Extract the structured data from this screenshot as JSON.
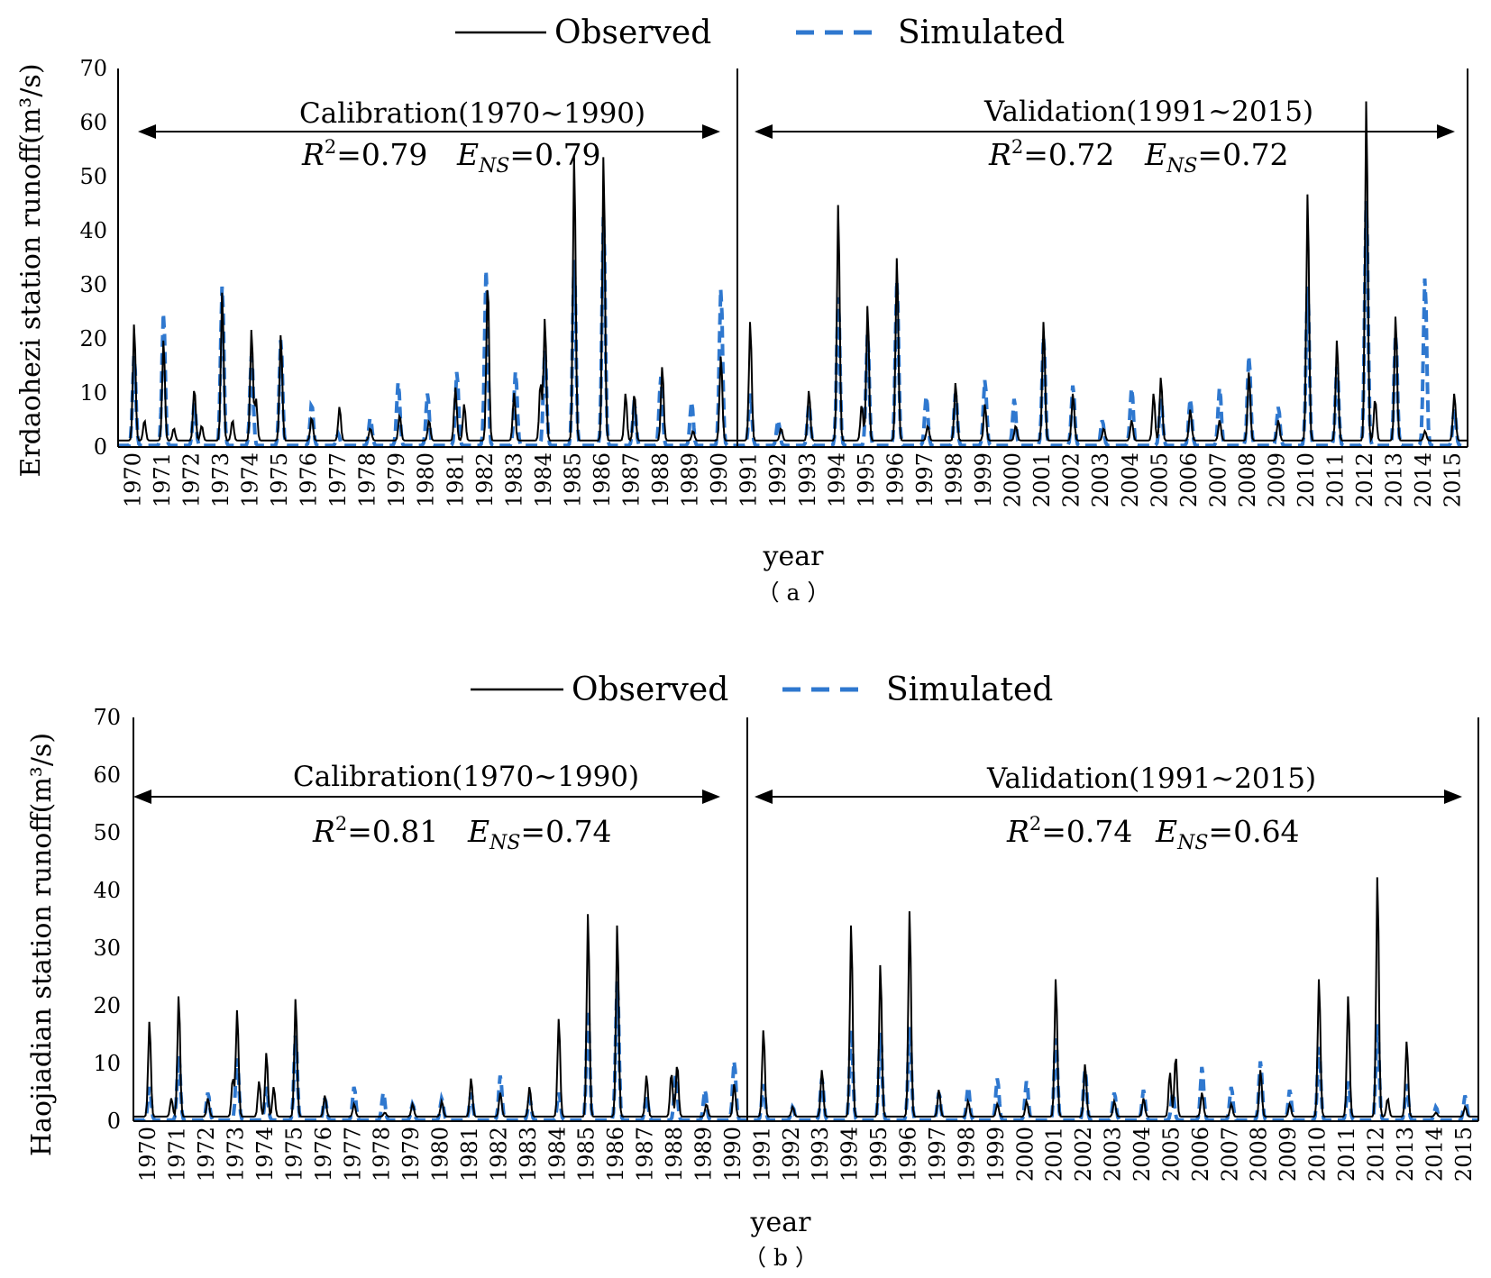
{
  "legend": {
    "observed_label": "Observed",
    "simulated_label": "Simulated"
  },
  "colors": {
    "observed": "#000000",
    "simulated": "#2F78CF",
    "axis": "#000000"
  },
  "chart_data": [
    {
      "type": "line",
      "panel_label": "（ a ）",
      "ylabel": "Erdaohezi station runoff(m³/s)",
      "xlabel": "year",
      "ylim": [
        0,
        70
      ],
      "yticks": [
        0,
        10,
        20,
        30,
        40,
        50,
        60,
        70
      ],
      "x_start_year": 1970,
      "x_end_year": 2015,
      "split_year": 1991,
      "calibration_label": "Calibration(1970~1990)",
      "validation_label": "Validation(1991~2015)",
      "calibration_r2": "0.79",
      "calibration_ens": "0.79",
      "validation_r2": "0.72",
      "validation_ens": "0.72",
      "series": [
        {
          "name": "Observed",
          "base": 1.2,
          "peaks": [
            [
              1970.55,
              23
            ],
            [
              1970.9,
              5
            ],
            [
              1971.55,
              20
            ],
            [
              1971.9,
              3.5
            ],
            [
              1972.6,
              11
            ],
            [
              1972.85,
              4
            ],
            [
              1973.55,
              29
            ],
            [
              1973.9,
              5
            ],
            [
              1974.55,
              22
            ],
            [
              1974.7,
              9
            ],
            [
              1975.55,
              21
            ],
            [
              1976.6,
              5.5
            ],
            [
              1977.55,
              7.5
            ],
            [
              1978.6,
              3.5
            ],
            [
              1979.6,
              6
            ],
            [
              1980.6,
              5
            ],
            [
              1981.5,
              11
            ],
            [
              1981.8,
              8
            ],
            [
              1982.6,
              31
            ],
            [
              1983.5,
              10
            ],
            [
              1984.55,
              24
            ],
            [
              1984.4,
              12
            ],
            [
              1985.55,
              55
            ],
            [
              1986.55,
              54.5
            ],
            [
              1987.3,
              10
            ],
            [
              1987.6,
              10
            ],
            [
              1988.55,
              15
            ],
            [
              1989.6,
              3
            ],
            [
              1990.55,
              17
            ],
            [
              1991.55,
              23.5
            ],
            [
              1992.6,
              3.5
            ],
            [
              1993.55,
              10.5
            ],
            [
              1994.55,
              45.5
            ],
            [
              1995.55,
              26.5
            ],
            [
              1995.35,
              8
            ],
            [
              1996.55,
              35.5
            ],
            [
              1997.6,
              4
            ],
            [
              1998.55,
              12
            ],
            [
              1999.55,
              8
            ],
            [
              2000.6,
              4
            ],
            [
              2001.55,
              23.5
            ],
            [
              2002.55,
              10
            ],
            [
              2003.6,
              3.5
            ],
            [
              2004.55,
              5
            ],
            [
              2005.3,
              10
            ],
            [
              2005.55,
              13
            ],
            [
              2006.55,
              7
            ],
            [
              2007.55,
              5
            ],
            [
              2008.55,
              14
            ],
            [
              2009.55,
              5
            ],
            [
              2010.55,
              47.5
            ],
            [
              2011.55,
              20
            ],
            [
              2012.55,
              65
            ],
            [
              2012.85,
              9
            ],
            [
              2013.55,
              24.5
            ],
            [
              2014.55,
              3
            ],
            [
              2015.55,
              10
            ]
          ]
        },
        {
          "name": "Simulated",
          "base": 0.3,
          "peaks": [
            [
              1970.55,
              17
            ],
            [
              1971.55,
              25
            ],
            [
              1972.6,
              8
            ],
            [
              1973.55,
              30
            ],
            [
              1974.55,
              17
            ],
            [
              1975.55,
              20
            ],
            [
              1976.6,
              8
            ],
            [
              1977.5,
              2.5
            ],
            [
              1978.6,
              5.5
            ],
            [
              1979.55,
              12
            ],
            [
              1980.55,
              10
            ],
            [
              1981.55,
              14
            ],
            [
              1982.55,
              33
            ],
            [
              1983.55,
              14
            ],
            [
              1984.55,
              18
            ],
            [
              1985.55,
              35
            ],
            [
              1986.55,
              43
            ],
            [
              1987.6,
              8
            ],
            [
              1988.5,
              13
            ],
            [
              1989.55,
              8.5
            ],
            [
              1990.55,
              29.5
            ],
            [
              1991.55,
              10
            ],
            [
              1992.5,
              5
            ],
            [
              1993.55,
              8
            ],
            [
              1994.55,
              28
            ],
            [
              1995.55,
              21
            ],
            [
              1996.55,
              31
            ],
            [
              1997.55,
              9.5
            ],
            [
              1998.55,
              10
            ],
            [
              1999.55,
              12.5
            ],
            [
              2000.55,
              9
            ],
            [
              2001.55,
              20.5
            ],
            [
              2002.55,
              11.5
            ],
            [
              2003.55,
              5
            ],
            [
              2004.55,
              11
            ],
            [
              2005.55,
              9
            ],
            [
              2006.55,
              9
            ],
            [
              2007.55,
              11
            ],
            [
              2008.55,
              17
            ],
            [
              2009.55,
              7.5
            ],
            [
              2010.55,
              30
            ],
            [
              2011.55,
              15
            ],
            [
              2012.55,
              46
            ],
            [
              2013.55,
              21
            ],
            [
              2014.55,
              31.5
            ],
            [
              2015.55,
              7
            ]
          ]
        }
      ]
    },
    {
      "type": "line",
      "panel_label": "（ b ）",
      "ylabel": "Haojiadian station runoff(m³/s)",
      "xlabel": "year",
      "ylim": [
        0,
        70
      ],
      "yticks": [
        0,
        10,
        20,
        30,
        40,
        50,
        60,
        70
      ],
      "x_start_year": 1970,
      "x_end_year": 2015,
      "split_year": 1991,
      "calibration_label": "Calibration(1970~1990)",
      "validation_label": "Validation(1991~2015)",
      "calibration_r2": "0.81",
      "calibration_ens": "0.74",
      "validation_r2": "0.74",
      "validation_ens": "0.64",
      "series": [
        {
          "name": "Observed",
          "base": 0.8,
          "peaks": [
            [
              1970.55,
              17.5
            ],
            [
              1971.3,
              4
            ],
            [
              1971.55,
              22
            ],
            [
              1972.55,
              4
            ],
            [
              1973.4,
              7.5
            ],
            [
              1973.55,
              19.5
            ],
            [
              1974.3,
              7
            ],
            [
              1974.55,
              12
            ],
            [
              1974.8,
              6
            ],
            [
              1975.55,
              21.5
            ],
            [
              1976.55,
              4.5
            ],
            [
              1977.55,
              3
            ],
            [
              1978.6,
              1.5
            ],
            [
              1979.55,
              3
            ],
            [
              1980.55,
              3.5
            ],
            [
              1981.55,
              7.5
            ],
            [
              1982.55,
              5
            ],
            [
              1983.55,
              6
            ],
            [
              1984.55,
              18
            ],
            [
              1985.55,
              36.5
            ],
            [
              1986.55,
              34.5
            ],
            [
              1987.55,
              8
            ],
            [
              1988.4,
              8.5
            ],
            [
              1988.6,
              10
            ],
            [
              1989.6,
              3
            ],
            [
              1990.55,
              6.5
            ],
            [
              1991.55,
              16
            ],
            [
              1992.55,
              2.5
            ],
            [
              1993.55,
              9
            ],
            [
              1994.55,
              34.5
            ],
            [
              1995.55,
              27.5
            ],
            [
              1996.55,
              37
            ],
            [
              1997.55,
              5.5
            ],
            [
              1998.55,
              3.5
            ],
            [
              1999.55,
              3
            ],
            [
              2000.55,
              3.5
            ],
            [
              2001.55,
              25
            ],
            [
              2002.55,
              10
            ],
            [
              2003.55,
              3.5
            ],
            [
              2004.55,
              4
            ],
            [
              2005.45,
              8.5
            ],
            [
              2005.65,
              11.5
            ],
            [
              2006.55,
              5
            ],
            [
              2007.55,
              3
            ],
            [
              2008.55,
              9
            ],
            [
              2009.55,
              3
            ],
            [
              2010.55,
              25
            ],
            [
              2011.55,
              22
            ],
            [
              2012.55,
              43
            ],
            [
              2012.9,
              4
            ],
            [
              2013.55,
              14
            ],
            [
              2014.55,
              1.5
            ],
            [
              2015.55,
              2.5
            ]
          ]
        },
        {
          "name": "Simulated",
          "base": 0.2,
          "peaks": [
            [
              1970.55,
              6
            ],
            [
              1971.55,
              11.5
            ],
            [
              1972.55,
              5
            ],
            [
              1973.55,
              11
            ],
            [
              1974.55,
              6
            ],
            [
              1975.55,
              15
            ],
            [
              1976.55,
              4
            ],
            [
              1977.55,
              6
            ],
            [
              1978.55,
              5
            ],
            [
              1979.55,
              3
            ],
            [
              1980.55,
              4
            ],
            [
              1981.55,
              5
            ],
            [
              1982.55,
              8
            ],
            [
              1983.55,
              4
            ],
            [
              1984.55,
              5
            ],
            [
              1985.55,
              19.5
            ],
            [
              1986.55,
              24.5
            ],
            [
              1987.55,
              4.5
            ],
            [
              1988.55,
              8
            ],
            [
              1989.55,
              5.5
            ],
            [
              1990.55,
              10.5
            ],
            [
              1991.55,
              6.5
            ],
            [
              1992.55,
              2.5
            ],
            [
              1993.55,
              7.5
            ],
            [
              1994.55,
              16
            ],
            [
              1995.55,
              15.5
            ],
            [
              1996.55,
              16.5
            ],
            [
              1997.55,
              5
            ],
            [
              1998.55,
              6
            ],
            [
              1999.55,
              7.5
            ],
            [
              2000.55,
              7
            ],
            [
              2001.55,
              14.5
            ],
            [
              2002.55,
              9
            ],
            [
              2003.55,
              5
            ],
            [
              2004.55,
              5.5
            ],
            [
              2005.55,
              5
            ],
            [
              2006.55,
              9.5
            ],
            [
              2007.55,
              6
            ],
            [
              2008.55,
              10.5
            ],
            [
              2009.55,
              5.5
            ],
            [
              2010.55,
              13
            ],
            [
              2011.55,
              7
            ],
            [
              2012.55,
              17
            ],
            [
              2013.55,
              6.5
            ],
            [
              2014.55,
              2.5
            ],
            [
              2015.55,
              4.5
            ]
          ]
        }
      ]
    }
  ]
}
